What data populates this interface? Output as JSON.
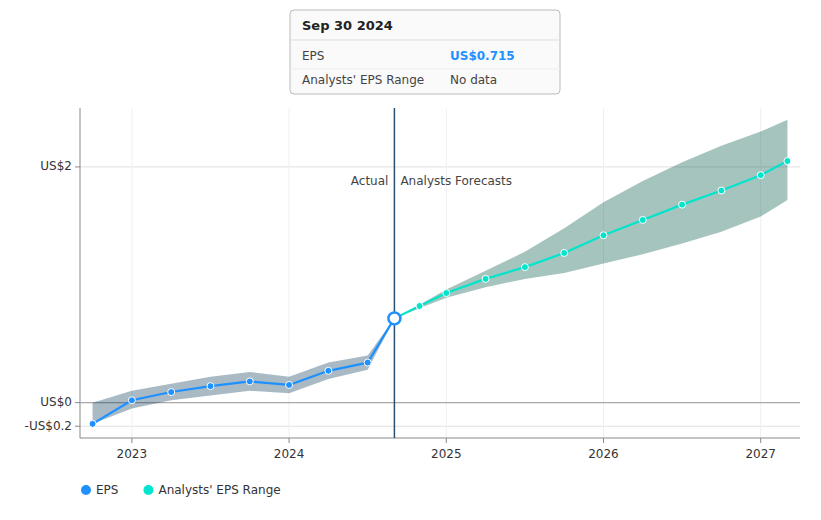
{
  "chart_data": {
    "type": "line",
    "xlim": [
      2022.67,
      2027.25
    ],
    "ylim": [
      -0.3,
      2.5
    ],
    "xticks": [
      2023,
      2024,
      2025,
      2026,
      2027
    ],
    "yticks": [
      {
        "value": -0.2,
        "label": "-US$0.2"
      },
      {
        "value": 0.0,
        "label": "US$0"
      },
      {
        "value": 2.0,
        "label": "US$2"
      }
    ],
    "grid": true,
    "series": [
      {
        "type": "area",
        "color": "#0a3a5a",
        "x": [
          2022.75,
          2023.0,
          2023.25,
          2023.5,
          2023.75,
          2024.0,
          2024.25,
          2024.5,
          2024.67
        ],
        "lower": [
          -0.18,
          -0.05,
          0.02,
          0.06,
          0.1,
          0.08,
          0.2,
          0.28,
          0.715
        ],
        "upper": [
          0.0,
          0.1,
          0.16,
          0.22,
          0.26,
          0.22,
          0.34,
          0.4,
          0.715
        ]
      },
      {
        "type": "area",
        "color": "#005544",
        "x": [
          2024.67,
          2024.83,
          2025.0,
          2025.25,
          2025.5,
          2025.75,
          2026.0,
          2026.25,
          2026.5,
          2026.75,
          2027.0,
          2027.17
        ],
        "lower": [
          0.715,
          0.8,
          0.89,
          0.98,
          1.05,
          1.1,
          1.18,
          1.26,
          1.35,
          1.45,
          1.58,
          1.72
        ],
        "upper": [
          0.715,
          0.83,
          0.96,
          1.12,
          1.28,
          1.48,
          1.7,
          1.88,
          2.04,
          2.18,
          2.3,
          2.4
        ]
      },
      {
        "name": "EPS",
        "type": "line",
        "color": "#1e90ff",
        "marker": "circle",
        "x": [
          2022.75,
          2023.0,
          2023.25,
          2023.5,
          2023.75,
          2024.0,
          2024.25,
          2024.5,
          2024.67
        ],
        "values": [
          -0.18,
          0.02,
          0.09,
          0.14,
          0.18,
          0.15,
          0.27,
          0.34,
          0.715
        ]
      },
      {
        "name": "Analysts' EPS Range",
        "type": "line",
        "color": "#00e5cc",
        "marker": "circle",
        "x": [
          2024.67,
          2024.83,
          2025.0,
          2025.25,
          2025.5,
          2025.75,
          2026.0,
          2026.25,
          2026.5,
          2026.75,
          2027.0,
          2027.17
        ],
        "values": [
          0.715,
          0.82,
          0.93,
          1.05,
          1.15,
          1.27,
          1.42,
          1.55,
          1.68,
          1.8,
          1.93,
          2.05
        ]
      }
    ],
    "highlight": {
      "x": 2024.67,
      "y": 0.715,
      "color": "#1e90ff"
    },
    "reference_lines": [
      {
        "y": 0.0,
        "color": "#aaaaaa"
      },
      {
        "x": 2024.67,
        "color": "#2a5070"
      }
    ],
    "annotations": [
      {
        "text": "Actual",
        "x": 2024.67,
        "y": 1.92
      },
      {
        "text": "Analysts Forecasts",
        "x": 2024.67,
        "y": 1.92
      }
    ],
    "tooltip": {
      "title": "Sep 30 2024",
      "rows": [
        {
          "label": "EPS",
          "value": "US$0.715",
          "color": "#1e90ff"
        },
        {
          "label": "Analysts' EPS Range",
          "value": "No data"
        }
      ]
    }
  }
}
